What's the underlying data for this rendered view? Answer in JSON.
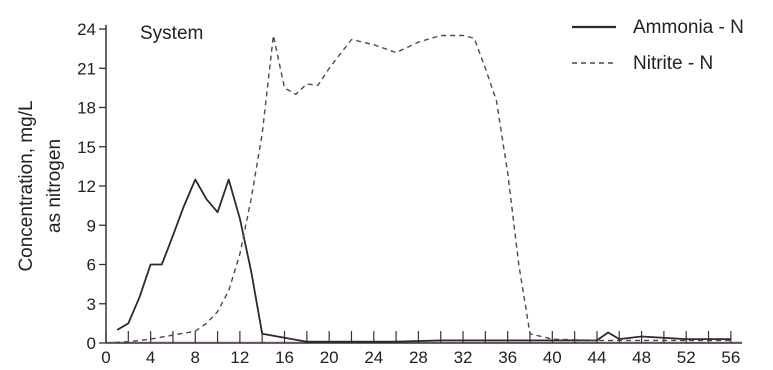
{
  "chart_data": {
    "type": "line",
    "title": "System",
    "ylabel_lines": [
      "Concentration, mg/L",
      "as nitrogen"
    ],
    "xlim": [
      0,
      57
    ],
    "ylim": [
      0,
      24
    ],
    "x_ticks": [
      0,
      4,
      8,
      12,
      16,
      20,
      24,
      28,
      32,
      36,
      40,
      44,
      48,
      52,
      56
    ],
    "y_ticks": [
      0,
      3,
      6,
      9,
      12,
      15,
      18,
      21,
      24
    ],
    "legend_position": "top-right",
    "series": [
      {
        "name": "Ammonia - N",
        "style": "solid",
        "color": "#2b2b2b",
        "x": [
          1,
          2,
          3,
          4,
          5,
          6,
          7,
          8,
          9,
          10,
          11,
          12,
          13,
          14,
          16,
          18,
          22,
          26,
          30,
          34,
          40,
          44,
          45,
          46,
          48,
          52,
          56
        ],
        "y": [
          1.0,
          1.5,
          3.5,
          6.0,
          6.0,
          8.2,
          10.5,
          12.5,
          11.0,
          10.0,
          12.5,
          9.5,
          5.5,
          0.7,
          0.4,
          0.1,
          0.1,
          0.1,
          0.2,
          0.2,
          0.2,
          0.2,
          0.8,
          0.3,
          0.5,
          0.3,
          0.3
        ]
      },
      {
        "name": "Nitrite - N",
        "style": "dashed",
        "color": "#4a4a4a",
        "x": [
          0,
          2,
          4,
          6,
          8,
          9,
          10,
          11,
          12,
          13,
          14,
          15,
          16,
          17,
          18,
          19,
          20,
          22,
          24,
          26,
          28,
          30,
          32,
          33,
          34,
          35,
          36,
          37,
          38,
          40,
          44,
          48,
          52,
          56
        ],
        "y": [
          0,
          0.1,
          0.3,
          0.6,
          0.9,
          1.5,
          2.4,
          4.0,
          6.8,
          11.0,
          16.0,
          23.5,
          19.5,
          19.0,
          19.8,
          19.7,
          21.0,
          23.2,
          22.8,
          22.2,
          23.0,
          23.5,
          23.5,
          23.3,
          21.0,
          18.5,
          13.0,
          6.0,
          0.7,
          0.3,
          0.2,
          0.2,
          0.2,
          0.2
        ]
      }
    ]
  },
  "colors": {
    "background": "#ffffff",
    "axis": "#333333",
    "baseline_accent": "#c0392b"
  }
}
